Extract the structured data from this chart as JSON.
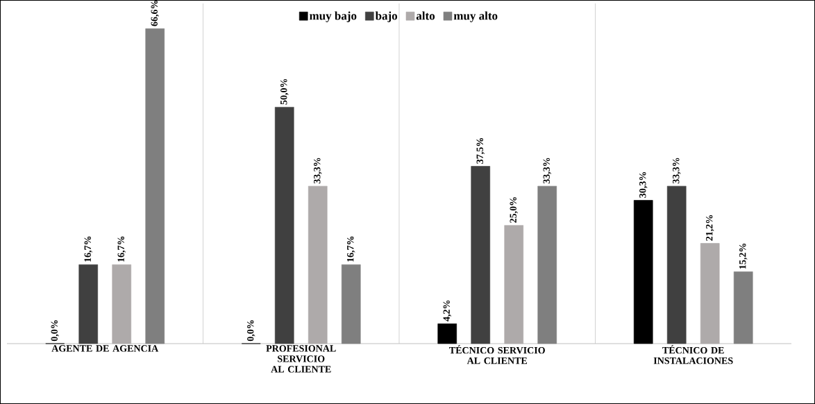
{
  "chart_data": {
    "type": "bar",
    "categories": [
      "AGENTE DE AGENCIA",
      "PROFESIONAL SERVICIO AL CLIENTE",
      "TÉCNICO SERVICIO AL CLIENTE",
      "TÉCNICO DE INSTALACIONES"
    ],
    "series": [
      {
        "name": "muy bajo",
        "color": "#000000",
        "values": [
          0.0,
          0.0,
          4.2,
          30.3
        ],
        "value_labels": [
          "0,0%",
          "0,0%",
          "4,2%",
          "30,3%"
        ]
      },
      {
        "name": "bajo",
        "color": "#404040",
        "values": [
          16.7,
          50.0,
          37.5,
          33.3
        ],
        "value_labels": [
          "16,7%",
          "50,0%",
          "37,5%",
          "33,3%"
        ]
      },
      {
        "name": "alto",
        "color": "#aeaaaa",
        "values": [
          16.7,
          33.3,
          25.0,
          21.2
        ],
        "value_labels": [
          "16,7%",
          "33,3%",
          "25,0%",
          "21,2%"
        ]
      },
      {
        "name": "muy alto",
        "color": "#7f7f7f",
        "values": [
          66.6,
          16.7,
          33.3,
          15.2
        ],
        "value_labels": [
          "66,6%",
          "16,7%",
          "33,3%",
          "15,2%"
        ]
      }
    ],
    "legend": "top",
    "grid": "x"
  }
}
